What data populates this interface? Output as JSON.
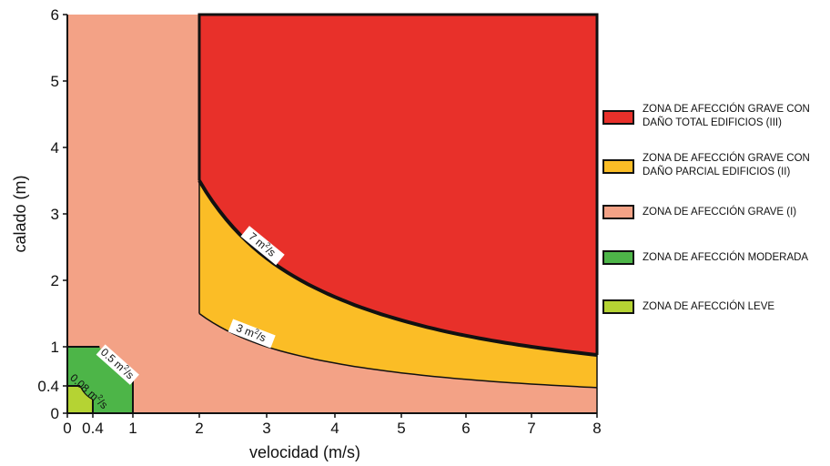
{
  "chart_data": {
    "type": "area",
    "xlabel": "velocidad (m/s)",
    "ylabel": "calado (m)",
    "xlim": [
      0,
      8
    ],
    "ylim": [
      0,
      6
    ],
    "x_ticks": [
      "0",
      "0.4",
      "1",
      "2",
      "3",
      "4",
      "5",
      "6",
      "7",
      "8"
    ],
    "y_ticks": [
      "0",
      "0.4",
      "1",
      "2",
      "3",
      "4",
      "5",
      "6"
    ],
    "grid": false,
    "legend_position": "right",
    "zones": [
      {
        "name": "ZONA DE AFECCIÓN GRAVE CON DAÑO TOTAL EDIFICIOS (III)",
        "color": "#e8302a",
        "definition": {
          "x_min": 2,
          "x_max": 8,
          "y_min_curve_q": 7,
          "y_max": 6
        }
      },
      {
        "name": "ZONA DE AFECCIÓN GRAVE CON DAÑO PARCIAL EDIFICIOS (II)",
        "color": "#fbbd26",
        "definition": {
          "x_min": 2,
          "x_max": 8,
          "between_curves_q": [
            3,
            7
          ]
        }
      },
      {
        "name": "ZONA DE AFECCIÓN GRAVE (I)",
        "color": "#f3a286",
        "definition": {
          "x_min": 0,
          "x_max": 8,
          "y_min": 0,
          "y_max": 6
        }
      },
      {
        "name": "ZONA DE AFECCIÓN MODERADA",
        "color": "#4db548",
        "definition": {
          "x_max": 1,
          "y_max": 1,
          "curve_q": 0.5
        }
      },
      {
        "name": "ZONA DE AFECCIÓN LEVE",
        "color": "#b5d333",
        "definition": {
          "x_max": 0.4,
          "y_max": 0.4,
          "curve_q": 0.08
        }
      }
    ],
    "curves": [
      {
        "label_value": "7 m",
        "label_unit": "2",
        "label_suffix": "/s",
        "q": 7,
        "x_range": [
          2,
          8
        ]
      },
      {
        "label_value": "3 m",
        "label_unit": "2",
        "label_suffix": "/s",
        "q": 3,
        "x_range": [
          2,
          8
        ]
      },
      {
        "label_value": "0.5 m",
        "label_unit": "2",
        "label_suffix": "/s",
        "q": 0.5,
        "x_range": [
          0.5,
          1
        ]
      },
      {
        "label_value": "0.08 m",
        "label_unit": "2",
        "label_suffix": "/s",
        "q": 0.08,
        "x_range": [
          0.2,
          0.4
        ]
      }
    ]
  },
  "legend": {
    "items": [
      {
        "text": "ZONA DE AFECCIÓN GRAVE CON DAÑO TOTAL EDIFICIOS (III)",
        "color": "#e8302a"
      },
      {
        "text": "ZONA DE AFECCIÓN GRAVE CON DAÑO PARCIAL EDIFICIOS (II)",
        "color": "#fbbd26"
      },
      {
        "text": "ZONA DE AFECCIÓN GRAVE (I)",
        "color": "#f3a286"
      },
      {
        "text": "ZONA DE AFECCIÓN MODERADA",
        "color": "#4db548"
      },
      {
        "text": "ZONA DE AFECCIÓN LEVE",
        "color": "#b5d333"
      }
    ]
  }
}
